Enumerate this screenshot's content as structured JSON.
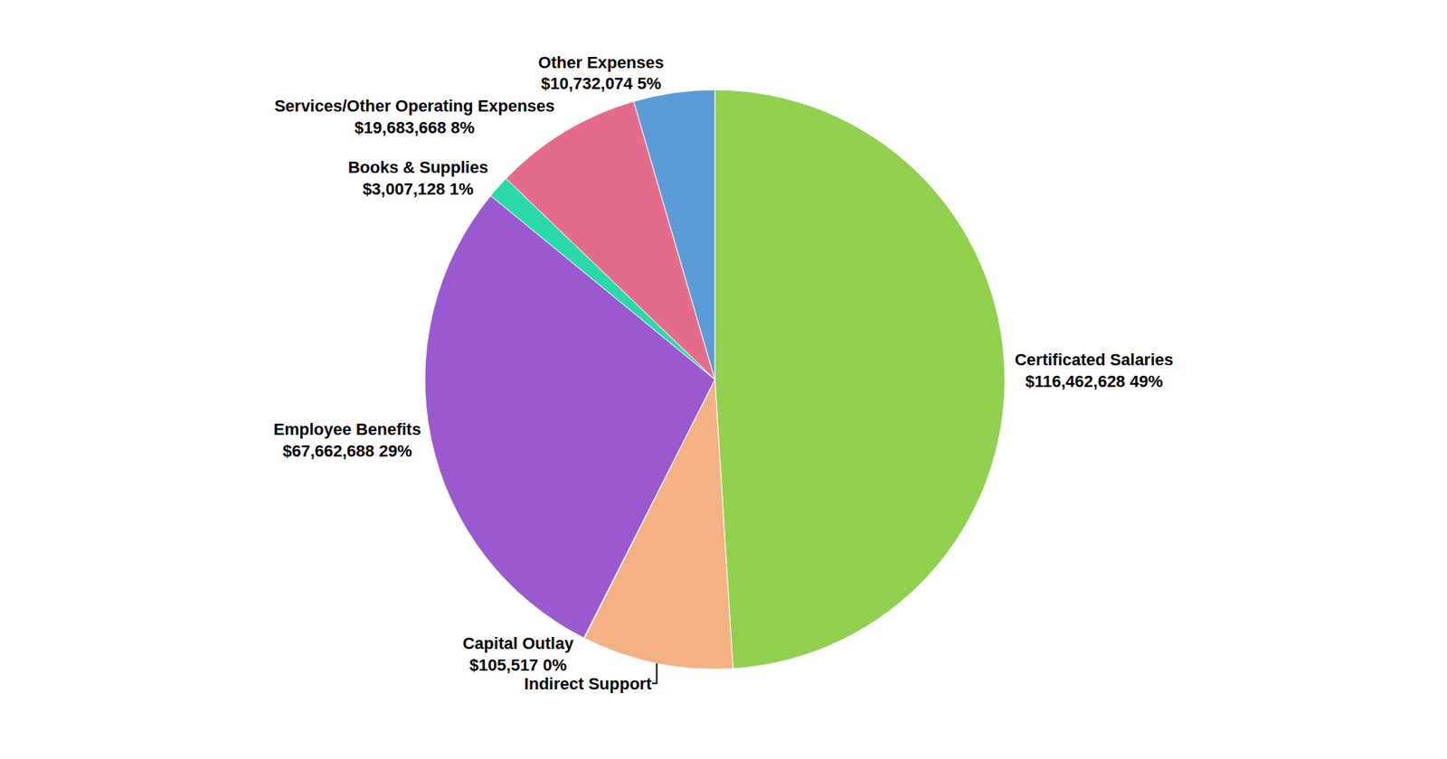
{
  "chart_data": {
    "type": "pie",
    "categories": [
      "Certificated Salaries",
      "Indirect Support",
      "Capital Outlay",
      "Employee Benefits",
      "Books & Supplies",
      "Services/Other Operating Expenses",
      "Other Expenses"
    ],
    "values": [
      116462628,
      20000000,
      105517,
      67662688,
      3007128,
      19683668,
      10732074
    ],
    "value_labels": [
      "$116,462,628 49%",
      null,
      "$105,517 0%",
      "$67,662,688 29%",
      "$3,007,128 1%",
      "$19,683,668 8%",
      "$10,732,074 5%"
    ],
    "colors": [
      "#92D050",
      "#F4B183",
      "#4F81BD",
      "#9B59D0",
      "#2BD9A8",
      "#E46C8A",
      "#5B9BD5"
    ],
    "data_labels": true
  }
}
